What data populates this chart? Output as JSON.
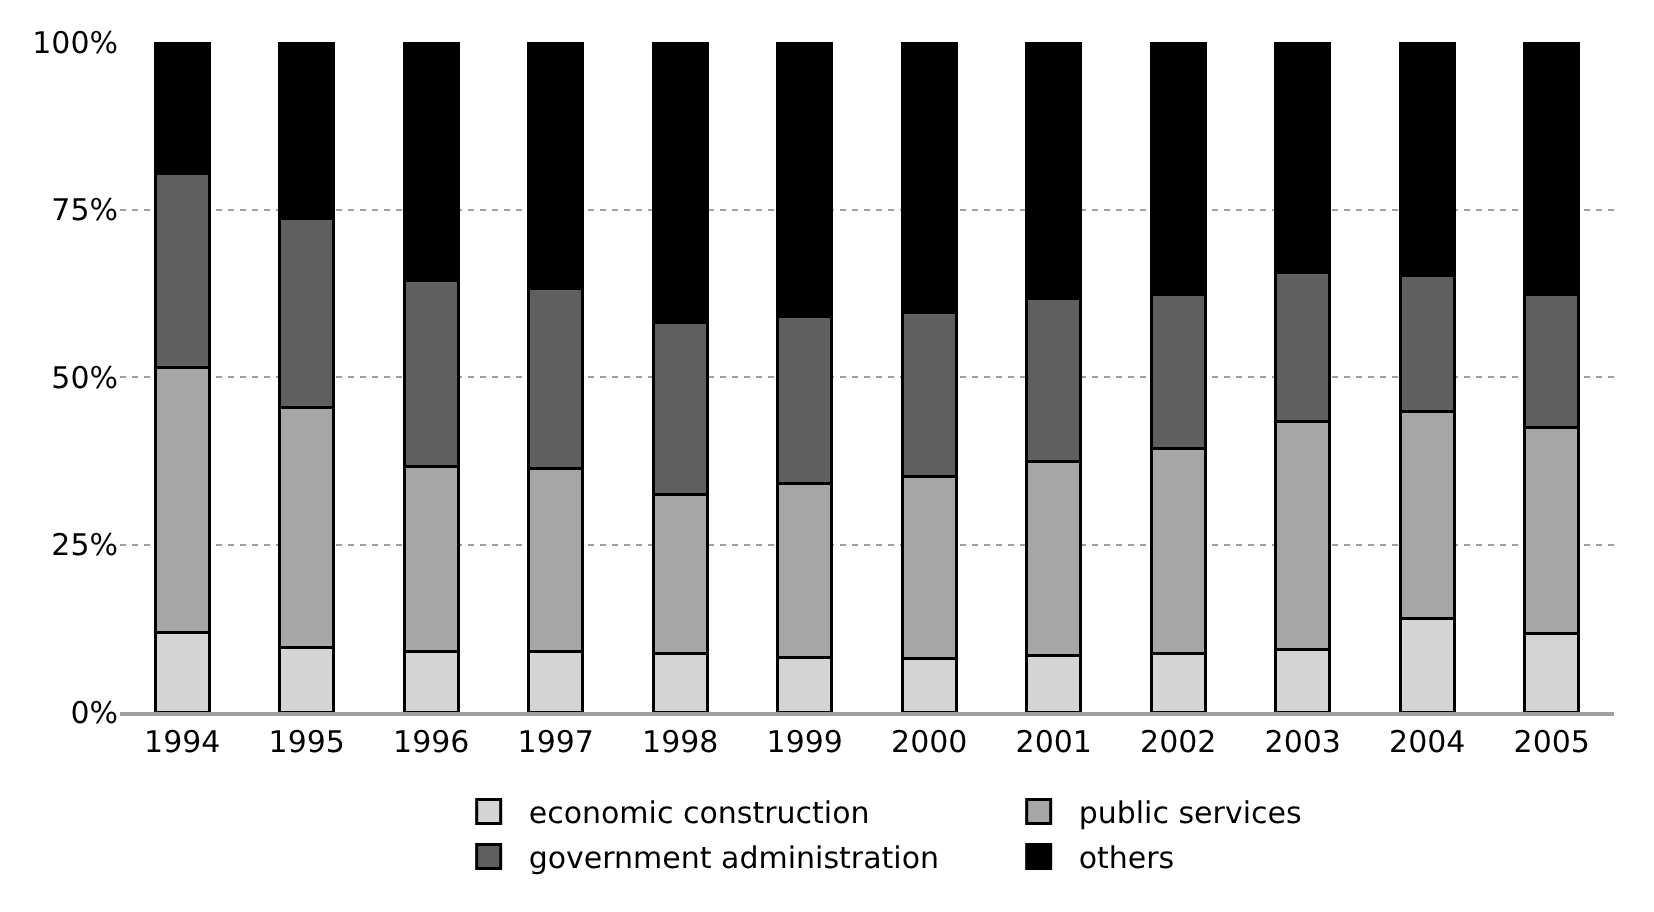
{
  "chart_data": {
    "type": "bar",
    "stacked": true,
    "categories": [
      "1994",
      "1995",
      "1996",
      "1997",
      "1998",
      "1999",
      "2000",
      "2001",
      "2002",
      "2003",
      "2004",
      "2005"
    ],
    "series": [
      {
        "name": "economic construction",
        "color": "#d4d4d4",
        "values": [
          11.9,
          9.7,
          9.1,
          9.1,
          8.7,
          8.2,
          8.0,
          8.5,
          8.7,
          9.3,
          14.0,
          11.7
        ]
      },
      {
        "name": "public services",
        "color": "#a6a6a6",
        "values": [
          39.5,
          35.7,
          27.5,
          27.2,
          23.7,
          25.9,
          27.1,
          28.9,
          30.6,
          34.1,
          30.9,
          30.7
        ]
      },
      {
        "name": "government administration",
        "color": "#5f5f5f",
        "values": [
          29.0,
          28.3,
          27.8,
          26.9,
          25.8,
          25.0,
          24.5,
          24.3,
          23.0,
          22.2,
          20.3,
          19.9
        ]
      },
      {
        "name": "others",
        "color": "#000000",
        "values": [
          19.6,
          26.3,
          35.6,
          36.8,
          41.8,
          40.9,
          40.4,
          38.3,
          37.7,
          34.4,
          34.8,
          37.7
        ]
      }
    ],
    "ylim": [
      0,
      100
    ],
    "yticks": [
      {
        "value": 0,
        "label": "0%"
      },
      {
        "value": 25,
        "label": "25%"
      },
      {
        "value": 50,
        "label": "50%"
      },
      {
        "value": 75,
        "label": "75%"
      },
      {
        "value": 100,
        "label": "100%"
      }
    ],
    "grid": "y",
    "legend": "bottom"
  }
}
